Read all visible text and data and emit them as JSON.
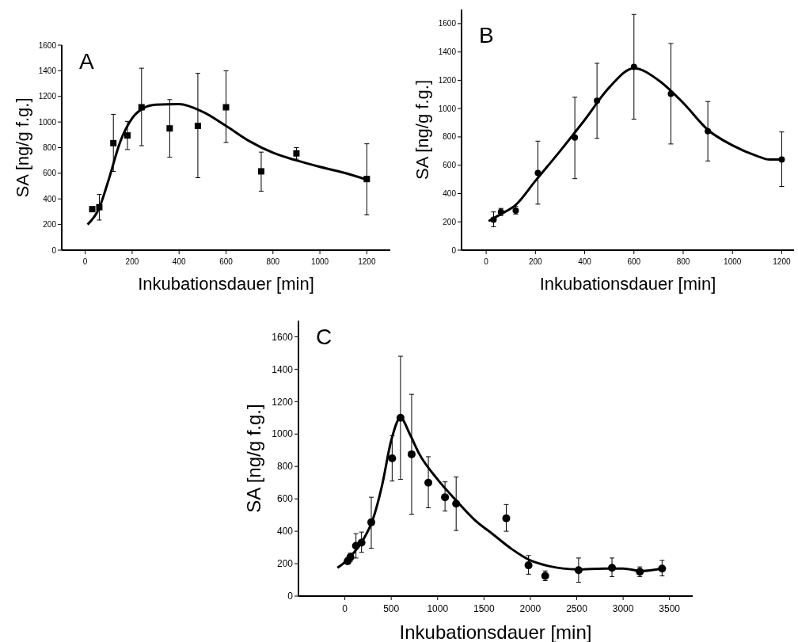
{
  "chart_data": [
    {
      "type": "scatter",
      "title": "A",
      "xlabel": "Inkubationsdauer [min]",
      "ylabel": "SA [ng/g f.g.]",
      "xlim": [
        -100,
        1300
      ],
      "ylim": [
        0,
        1600
      ],
      "xticks": [
        0,
        200,
        400,
        600,
        800,
        1000,
        1200
      ],
      "yticks": [
        0,
        200,
        400,
        600,
        800,
        1000,
        1200,
        1400,
        1600
      ],
      "grid": false,
      "series": [
        {
          "color": "#000000",
          "marker": "square",
          "x": [
            30,
            60,
            120,
            180,
            240,
            360,
            480,
            600,
            750,
            900,
            1200
          ],
          "values": [
            320,
            335,
            835,
            895,
            1115,
            950,
            970,
            1115,
            615,
            755,
            555
          ],
          "errors": [
            null,
            [
              235,
              435
            ],
            [
              615,
              1060
            ],
            [
              785,
              1005
            ],
            [
              815,
              1420
            ],
            [
              725,
              1175
            ],
            [
              565,
              1380
            ],
            [
              840,
              1400
            ],
            [
              460,
              765
            ],
            [
              710,
              800
            ],
            [
              275,
              830
            ]
          ]
        },
        {
          "type": "line",
          "color": "#000000",
          "marker": "none",
          "line_style": "solid",
          "x": [
            10,
            60,
            100,
            150,
            200,
            250,
            300,
            400,
            500,
            600,
            700,
            800,
            900,
            1000,
            1100,
            1200
          ],
          "values": [
            200,
            330,
            550,
            850,
            1030,
            1110,
            1135,
            1140,
            1080,
            970,
            850,
            760,
            700,
            650,
            605,
            550
          ]
        }
      ]
    },
    {
      "type": "scatter",
      "title": "B",
      "xlabel": "Inkubationsdauer [min]",
      "ylabel": "SA [ng/g f.g.]",
      "xlim": [
        -100,
        1250
      ],
      "ylim": [
        0,
        1700
      ],
      "xticks": [
        0,
        200,
        400,
        600,
        800,
        1000,
        1200
      ],
      "yticks": [
        0,
        200,
        400,
        600,
        800,
        1000,
        1200,
        1400,
        1600
      ],
      "grid": false,
      "series": [
        {
          "color": "#000000",
          "marker": "circle",
          "x": [
            30,
            60,
            120,
            210,
            360,
            450,
            600,
            750,
            900,
            1200
          ],
          "values": [
            215,
            270,
            280,
            545,
            795,
            1055,
            1295,
            1105,
            840,
            640
          ],
          "errors": [
            [
              165,
              270
            ],
            [
              245,
              295
            ],
            [
              255,
              310
            ],
            [
              325,
              770
            ],
            [
              505,
              1080
            ],
            [
              790,
              1320
            ],
            [
              925,
              1665
            ],
            [
              750,
              1460
            ],
            [
              630,
              1050
            ],
            [
              450,
              835
            ]
          ]
        },
        {
          "type": "line",
          "color": "#000000",
          "marker": "none",
          "line_style": "solid",
          "x": [
            10,
            60,
            120,
            200,
            300,
            400,
            500,
            600,
            700,
            800,
            900,
            1000,
            1100,
            1150,
            1200
          ],
          "values": [
            205,
            255,
            320,
            490,
            700,
            920,
            1150,
            1285,
            1200,
            1040,
            850,
            740,
            665,
            640,
            640
          ]
        }
      ]
    },
    {
      "type": "scatter",
      "title": "C",
      "xlabel": "Inkubationsdauer [min]",
      "ylabel": "SA [ng/g f.g.]",
      "xlim": [
        -500,
        3750
      ],
      "ylim": [
        0,
        1700
      ],
      "xticks": [
        0,
        500,
        1000,
        1500,
        2000,
        2500,
        3000,
        3500
      ],
      "yticks": [
        0,
        200,
        400,
        600,
        800,
        1000,
        1200,
        1400,
        1600
      ],
      "grid": false,
      "series": [
        {
          "color": "#000000",
          "marker": "circle",
          "x": [
            30,
            60,
            120,
            180,
            285,
            510,
            600,
            720,
            900,
            1080,
            1200,
            1740,
            1980,
            2160,
            2520,
            2880,
            3180,
            3420
          ],
          "values": [
            215,
            240,
            310,
            330,
            455,
            850,
            1100,
            875,
            700,
            610,
            570,
            480,
            190,
            125,
            160,
            175,
            150,
            170
          ],
          "errors": [
            [
              200,
              235
            ],
            [
              215,
              265
            ],
            [
              235,
              385
            ],
            [
              270,
              395
            ],
            [
              295,
              610
            ],
            [
              710,
              990
            ],
            [
              720,
              1480
            ],
            [
              505,
              1245
            ],
            [
              545,
              860
            ],
            [
              525,
              705
            ],
            [
              405,
              735
            ],
            [
              400,
              565
            ],
            [
              135,
              250
            ],
            [
              95,
              155
            ],
            [
              85,
              235
            ],
            [
              120,
              235
            ],
            [
              120,
              180
            ],
            [
              125,
              220
            ]
          ]
        },
        {
          "type": "line",
          "color": "#000000",
          "marker": "none",
          "line_style": "solid",
          "x": [
            -80,
            0,
            100,
            200,
            300,
            400,
            500,
            600,
            700,
            800,
            1000,
            1200,
            1400,
            1600,
            1800,
            2000,
            2200,
            2500,
            2800,
            3000,
            3200,
            3420
          ],
          "values": [
            175,
            210,
            270,
            350,
            470,
            680,
            960,
            1100,
            1000,
            880,
            720,
            590,
            470,
            380,
            290,
            220,
            185,
            165,
            170,
            170,
            155,
            170
          ]
        }
      ]
    }
  ]
}
